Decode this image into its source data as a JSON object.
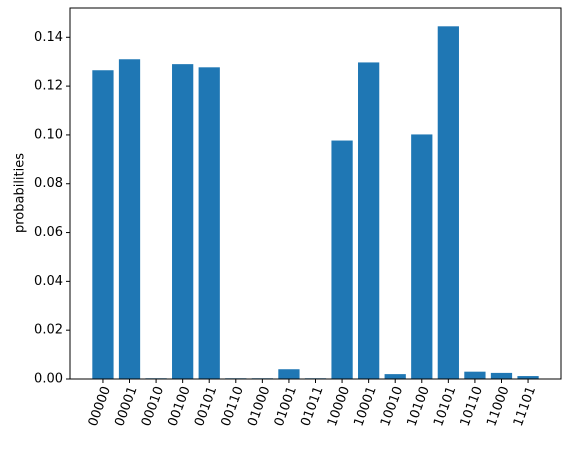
{
  "chart_data": {
    "type": "bar",
    "y_label": "probabilities",
    "categories": [
      "00000",
      "00001",
      "00010",
      "00100",
      "00101",
      "00110",
      "01000",
      "01001",
      "01011",
      "10000",
      "10001",
      "10010",
      "10100",
      "10101",
      "10110",
      "11000",
      "11101"
    ],
    "values": [
      0.1265,
      0.131,
      0.0003,
      0.129,
      0.1277,
      0.0003,
      0.0003,
      0.004,
      0.0003,
      0.0977,
      0.1297,
      0.002,
      0.1002,
      0.1445,
      0.003,
      0.0025,
      0.0012
    ],
    "color": "#1f77b4",
    "ylim": [
      0,
      0.152
    ],
    "yticks": [
      {
        "value": 0,
        "label": "0.00"
      },
      {
        "value": 0.02,
        "label": "0.02"
      },
      {
        "value": 0.04,
        "label": "0.04"
      },
      {
        "value": 0.06,
        "label": "0.06"
      },
      {
        "value": 0.08,
        "label": "0.08"
      },
      {
        "value": 0.1,
        "label": "0.10"
      },
      {
        "value": 0.12,
        "label": "0.12"
      },
      {
        "value": 0.14,
        "label": "0.14"
      }
    ]
  }
}
